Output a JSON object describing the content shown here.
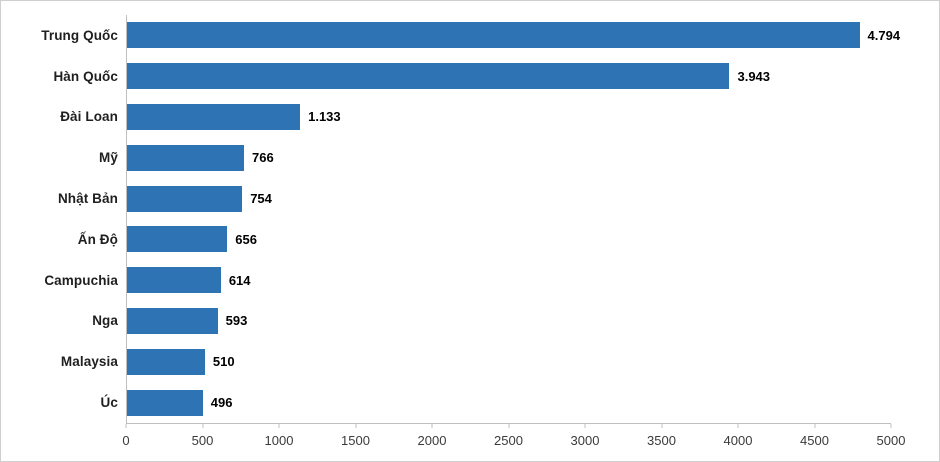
{
  "chart_style": {
    "bar_color": "#2e74b5",
    "axis_line_color": "#bfbfbf",
    "category_label_color": "#1f1f1f",
    "value_label_color": "#000000",
    "tick_label_color": "#3b3b3b",
    "background": "#ffffff"
  },
  "chart_data": {
    "type": "bar",
    "orientation": "horizontal",
    "title": "",
    "xlabel": "",
    "ylabel": "",
    "categories": [
      "Trung Quốc",
      "Hàn Quốc",
      "Đài Loan",
      "Mỹ",
      "Nhật Bản",
      "Ấn Độ",
      "Campuchia",
      "Nga",
      "Malaysia",
      "Úc"
    ],
    "values": [
      4794,
      3943,
      1133,
      766,
      754,
      656,
      614,
      593,
      510,
      496
    ],
    "value_labels": [
      "4.794",
      "3.943",
      "1.133",
      "766",
      "754",
      "656",
      "614",
      "593",
      "510",
      "496"
    ],
    "xlim": [
      0,
      5000
    ],
    "x_ticks": [
      0,
      500,
      1000,
      1500,
      2000,
      2500,
      3000,
      3500,
      4000,
      4500,
      5000
    ],
    "x_tick_labels": [
      "0",
      "500",
      "1000",
      "1500",
      "2000",
      "2500",
      "3000",
      "3500",
      "4000",
      "4500",
      "5000"
    ],
    "grid": false,
    "legend": null
  }
}
